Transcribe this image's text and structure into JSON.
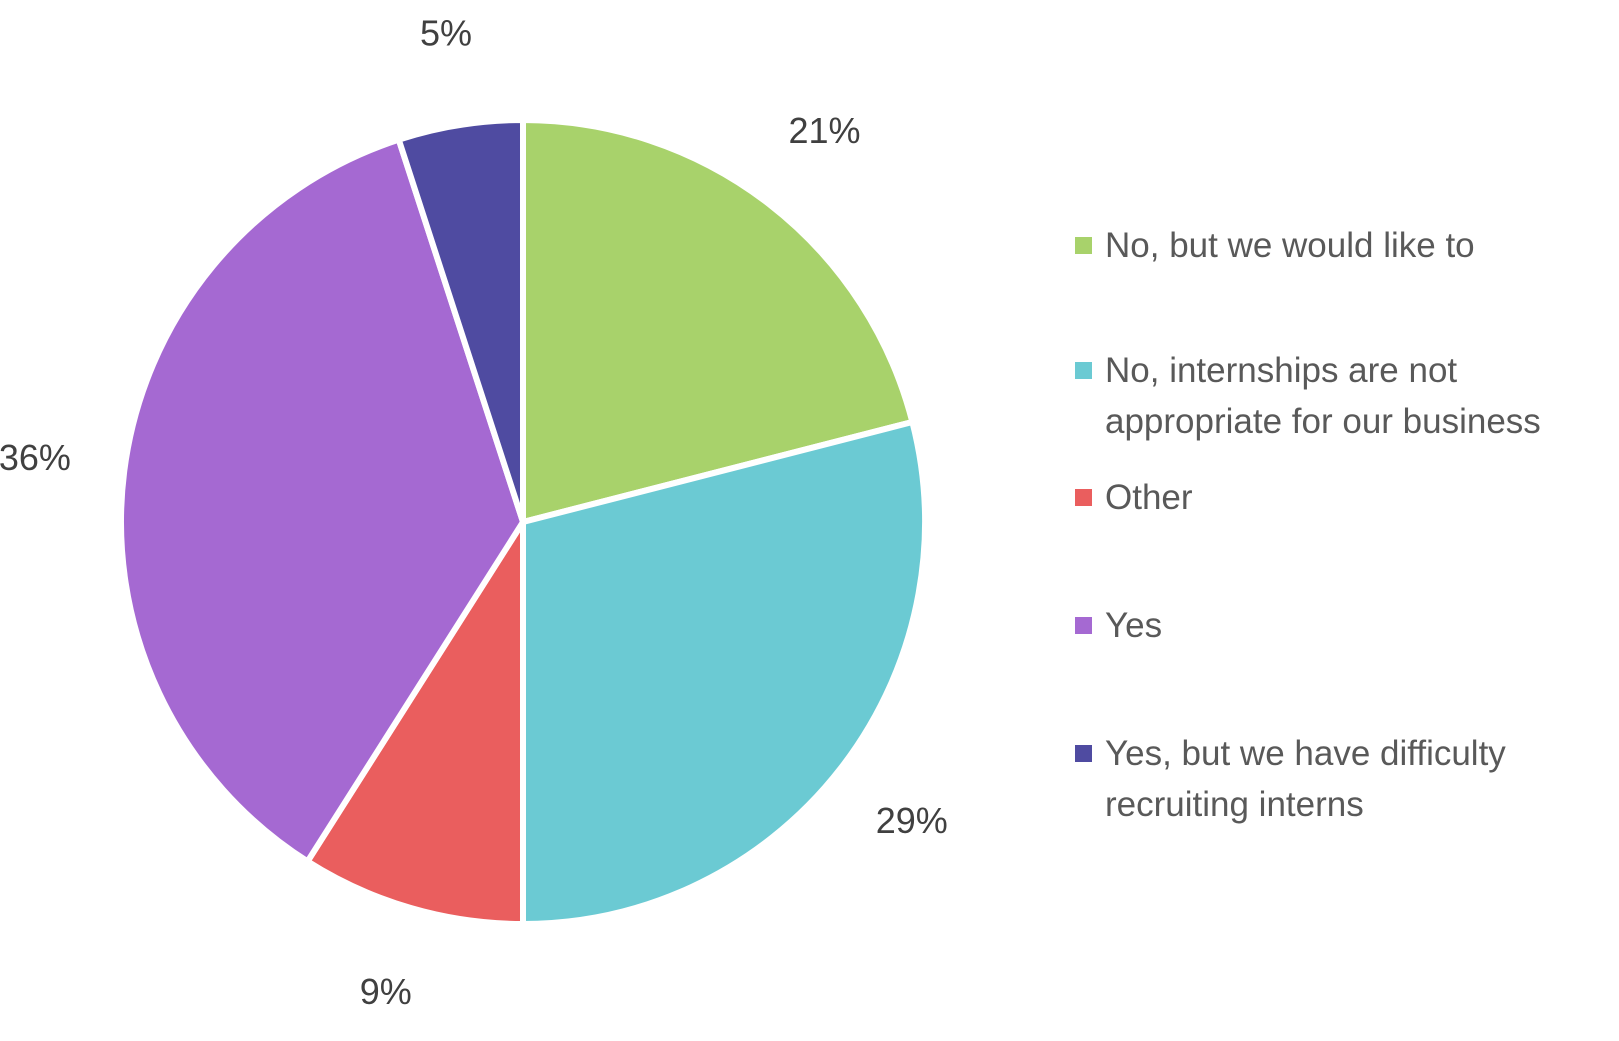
{
  "chart_data": {
    "type": "pie",
    "title": "",
    "start_angle_deg": 0,
    "direction": "clockwise",
    "legend_position": "right",
    "slices": [
      {
        "label": "No, but we would like to",
        "value": 21,
        "display": "21%",
        "color": "#a8d26b"
      },
      {
        "label": "No, internships are not appropriate for our business",
        "value": 29,
        "display": "29%",
        "color": "#6bcad3"
      },
      {
        "label": "Other",
        "value": 9,
        "display": "9%",
        "color": "#ea5e5e"
      },
      {
        "label": "Yes",
        "value": 36,
        "display": "36%",
        "color": "#a569d2"
      },
      {
        "label": "Yes, but we have difficulty recruiting interns",
        "value": 5,
        "display": "5%",
        "color": "#4f4ba1"
      }
    ]
  },
  "legend": {
    "items": [
      {
        "text": "No, but we would like to",
        "color": "#a8d26b"
      },
      {
        "text": "No, internships are not\nappropriate for our business",
        "color": "#6bcad3"
      },
      {
        "text": "Other",
        "color": "#ea5e5e"
      },
      {
        "text": "Yes",
        "color": "#a569d2"
      },
      {
        "text": "Yes, but we have difficulty\nrecruiting interns",
        "color": "#4f4ba1"
      }
    ]
  }
}
